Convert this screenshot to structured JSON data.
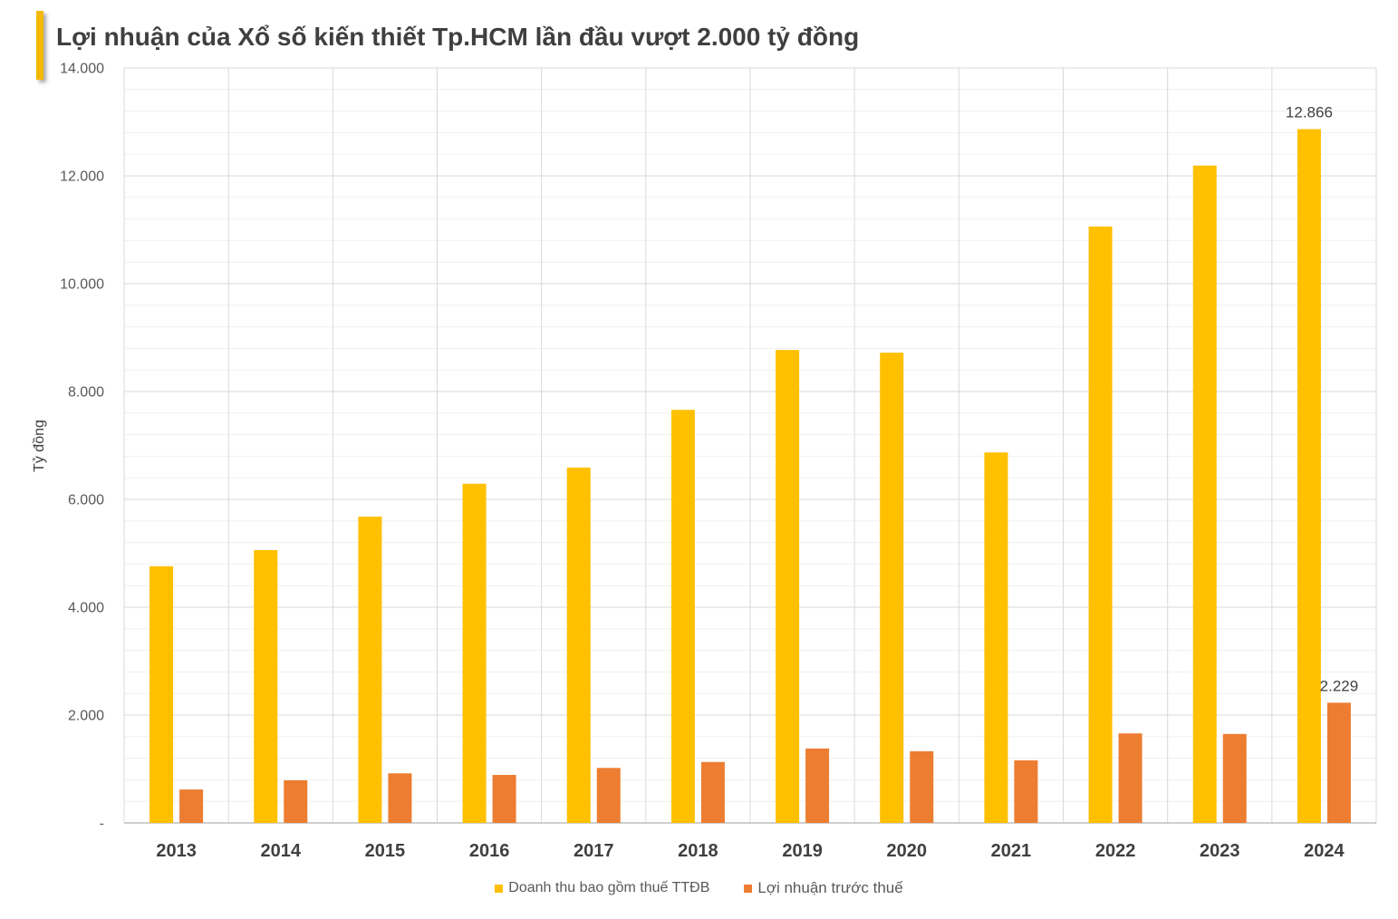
{
  "colors": {
    "title_accent": "#F5B800"
  },
  "chart_data": {
    "type": "bar",
    "title": "Lợi nhuận của Xổ số kiến thiết Tp.HCM lần đầu vượt 2.000 tỷ đồng",
    "ylabel": "Tỷ đồng",
    "ylim": [
      0,
      14000
    ],
    "yticks": [
      0,
      2000,
      4000,
      6000,
      8000,
      10000,
      12000,
      14000
    ],
    "ytick_labels": [
      "-",
      "2.000",
      "4.000",
      "6.000",
      "8.000",
      "10.000",
      "12.000",
      "14.000"
    ],
    "categories": [
      "2013",
      "2014",
      "2015",
      "2016",
      "2017",
      "2018",
      "2019",
      "2020",
      "2021",
      "2022",
      "2023",
      "2024"
    ],
    "series": [
      {
        "name": "Doanh thu bao gồm thuế TTĐB",
        "color": "#FFC000",
        "values": [
          4760,
          5060,
          5680,
          6290,
          6590,
          7660,
          8770,
          8720,
          6870,
          11060,
          12190,
          12866
        ]
      },
      {
        "name": "Lợi nhuận trước thuế",
        "color": "#ED7D31",
        "values": [
          620,
          790,
          920,
          890,
          1020,
          1130,
          1380,
          1330,
          1160,
          1660,
          1650,
          2229
        ]
      }
    ],
    "data_labels": [
      {
        "series": 0,
        "index": 11,
        "text": "12.866"
      },
      {
        "series": 1,
        "index": 11,
        "text": "2.229"
      }
    ],
    "grid": true,
    "legend": "bottom"
  }
}
